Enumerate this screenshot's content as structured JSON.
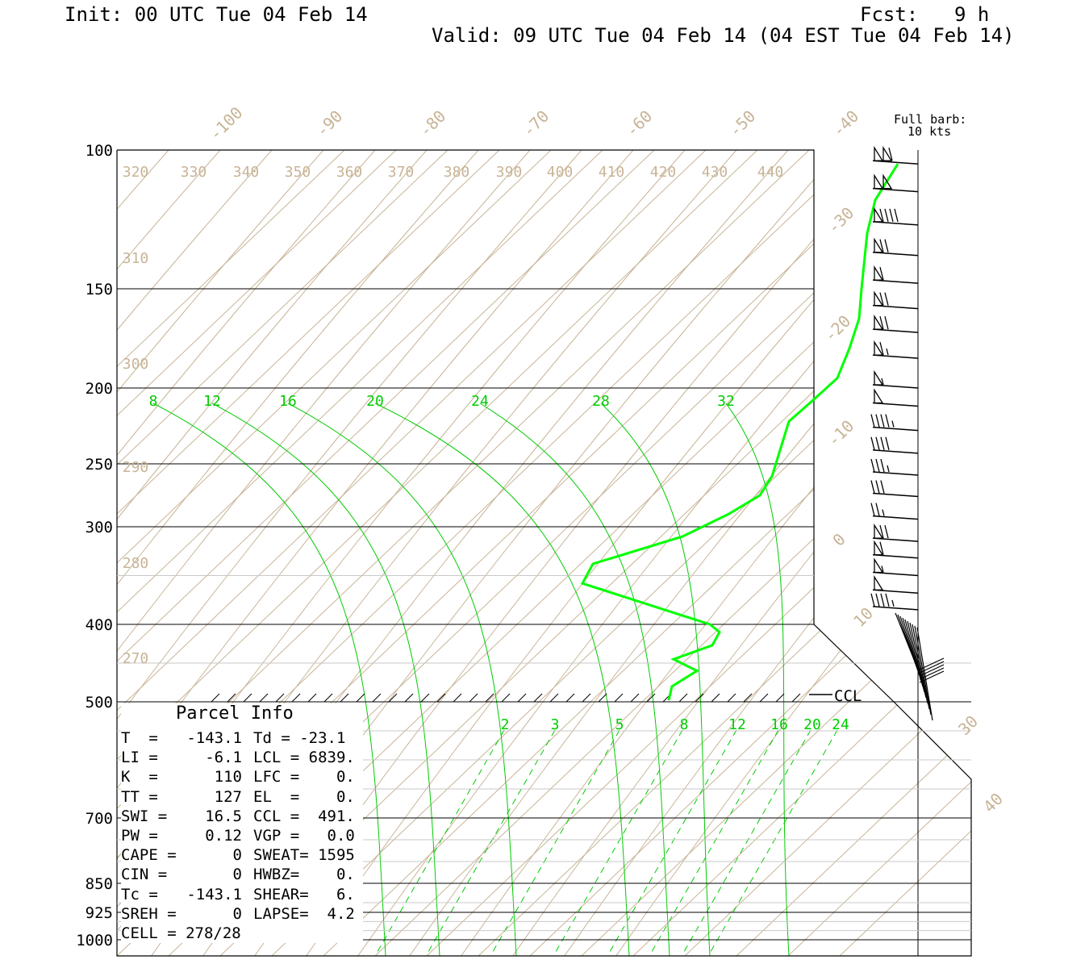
{
  "header": {
    "init": "Init: 00 UTC Tue 04 Feb 14",
    "fcst_label": "Fcst:",
    "fcst_value": "9 h",
    "valid": "Valid: 09 UTC Tue 04 Feb 14 (04 EST Tue 04 Feb 14)"
  },
  "barb_legend": {
    "line1": "Full barb:",
    "line2": "10 kts"
  },
  "ccl_label": "CCL",
  "chart_data": {
    "type": "line",
    "title": "",
    "pressure_levels": [
      100,
      150,
      200,
      250,
      300,
      400,
      500,
      700,
      850,
      925,
      1000
    ],
    "pressure_labels": [
      "100",
      "150",
      "200",
      "250",
      "300",
      "400",
      "500",
      "700",
      "850",
      "925",
      "1000"
    ],
    "isotherm_labels_top": [
      "-100",
      "-90",
      "-80",
      "-70",
      "-60",
      "-50",
      "-40"
    ],
    "isotherm_labels_right": [
      "-30",
      "-20",
      "-10",
      "0",
      "10",
      "30",
      "40"
    ],
    "theta_labels_top": [
      "320",
      "330",
      "340",
      "350",
      "360",
      "370",
      "380",
      "390",
      "400",
      "410",
      "420",
      "430",
      "440"
    ],
    "theta_labels_left": [
      "310",
      "300",
      "290",
      "280",
      "270"
    ],
    "theta_e_labels": [
      "8",
      "12",
      "16",
      "20",
      "24",
      "28",
      "32"
    ],
    "mixing_ratio_labels": [
      "2",
      "3",
      "5",
      "8",
      "12",
      "16",
      "20",
      "24"
    ],
    "series": [
      {
        "color": "#00ff00",
        "points": [
          {
            "p": 105,
            "x": 1113
          },
          {
            "p": 118,
            "x": 1085
          },
          {
            "p": 130,
            "x": 1075
          },
          {
            "p": 150,
            "x": 1068
          },
          {
            "p": 165,
            "x": 1065
          },
          {
            "p": 180,
            "x": 1053
          },
          {
            "p": 195,
            "x": 1038
          },
          {
            "p": 208,
            "x": 1008
          },
          {
            "p": 222,
            "x": 978
          },
          {
            "p": 260,
            "x": 957
          },
          {
            "p": 275,
            "x": 942
          },
          {
            "p": 290,
            "x": 903
          },
          {
            "p": 310,
            "x": 846
          },
          {
            "p": 338,
            "x": 735
          },
          {
            "p": 358,
            "x": 722
          },
          {
            "p": 400,
            "x": 880
          },
          {
            "p": 410,
            "x": 892
          },
          {
            "p": 427,
            "x": 883
          },
          {
            "p": 445,
            "x": 835
          },
          {
            "p": 460,
            "x": 864
          },
          {
            "p": 480,
            "x": 833
          },
          {
            "p": 498,
            "x": 829
          }
        ]
      }
    ],
    "wind_barbs": [
      {
        "p": 105,
        "knots": 110
      },
      {
        "p": 115,
        "knots": 100
      },
      {
        "p": 127,
        "knots": 90
      },
      {
        "p": 138,
        "knots": 70
      },
      {
        "p": 148,
        "knots": 60
      },
      {
        "p": 160,
        "knots": 70
      },
      {
        "p": 172,
        "knots": 70
      },
      {
        "p": 185,
        "knots": 65
      },
      {
        "p": 200,
        "knots": 55
      },
      {
        "p": 212,
        "knots": 50
      },
      {
        "p": 228,
        "knots": 45
      },
      {
        "p": 243,
        "knots": 40
      },
      {
        "p": 259,
        "knots": 35
      },
      {
        "p": 276,
        "knots": 30
      },
      {
        "p": 294,
        "knots": 25
      },
      {
        "p": 315,
        "knots": 70
      },
      {
        "p": 332,
        "knots": 60
      },
      {
        "p": 350,
        "knots": 55
      },
      {
        "p": 368,
        "knots": 50
      },
      {
        "p": 385,
        "knots": 45
      }
    ]
  },
  "parcel": {
    "title": "Parcel Info",
    "rows": [
      [
        "T  =",
        "-143.1",
        "Td = -23.1"
      ],
      [
        "LI =",
        "-6.1",
        "LCL = 6839."
      ],
      [
        "K  =",
        "110",
        "LFC =    0."
      ],
      [
        "TT =",
        "127",
        "EL  =    0."
      ],
      [
        "SWI =",
        "16.5",
        "CCL =  491."
      ],
      [
        "PW =",
        "0.12",
        "VGP =   0.0"
      ],
      [
        "CAPE =",
        "0",
        "SWEAT= 1595"
      ],
      [
        "CIN =",
        "0",
        "HWBZ=    0."
      ],
      [
        "Tc =",
        "-143.1",
        "SHEAR=   6."
      ],
      [
        "SREH =",
        "0",
        "LAPSE=  4.2"
      ],
      [
        "CELL = 278/28",
        "",
        ""
      ]
    ]
  }
}
